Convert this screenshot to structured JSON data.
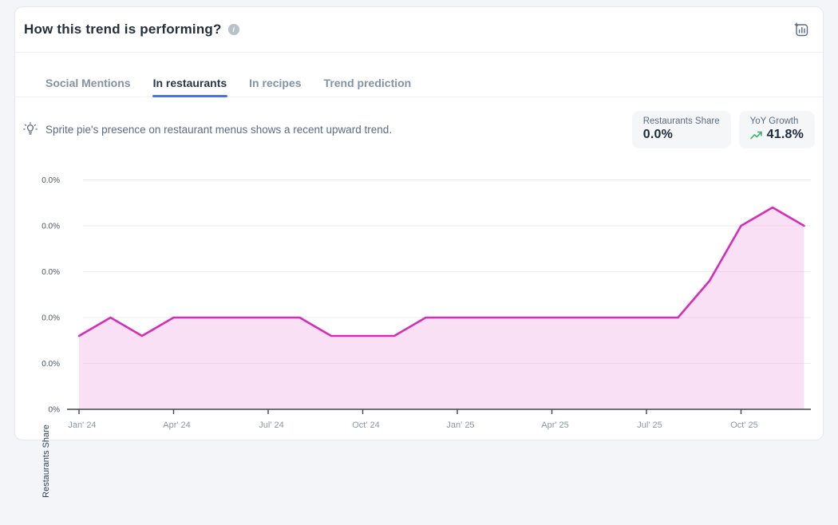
{
  "header": {
    "title": "How this trend is performing?",
    "info_icon": "info",
    "export_icon": "add-chart-to-board"
  },
  "tabs": {
    "items": [
      {
        "label": "Social Mentions",
        "active": false
      },
      {
        "label": "In restaurants",
        "active": true
      },
      {
        "label": "In recipes",
        "active": false
      },
      {
        "label": "Trend prediction",
        "active": false
      }
    ]
  },
  "insight": {
    "icon": "lightbulb",
    "text": "Sprite pie's presence on restaurant menus shows a recent upward trend."
  },
  "stats": [
    {
      "label": "Restaurants Share",
      "value": "0.0%"
    },
    {
      "label": "YoY Growth",
      "value": "41.8%",
      "trend": "up",
      "trend_color": "#3cb572"
    }
  ],
  "chart_data": {
    "type": "area",
    "title": "",
    "xlabel": "",
    "ylabel": "Restaurants Share",
    "legend": "none",
    "grid": "horizontal",
    "categories": [
      "Jan' 24",
      "Feb' 24",
      "Mar' 24",
      "Apr' 24",
      "May' 24",
      "Jun' 24",
      "Jul' 24",
      "Aug' 24",
      "Sep' 24",
      "Oct' 24",
      "Nov' 24",
      "Dec' 24",
      "Jan' 25",
      "Feb' 25",
      "Mar' 25",
      "Apr' 25",
      "May' 25",
      "Jun' 25",
      "Jul' 25",
      "Aug' 25",
      "Sep' 25",
      "Oct' 25",
      "Nov' 25",
      "Dec' 25"
    ],
    "values": [
      0.0016,
      0.002,
      0.0016,
      0.002,
      0.002,
      0.002,
      0.002,
      0.002,
      0.0016,
      0.0016,
      0.0016,
      0.002,
      0.002,
      0.002,
      0.002,
      0.002,
      0.002,
      0.002,
      0.002,
      0.002,
      0.0028,
      0.004,
      0.0044,
      0.004
    ],
    "value_unit": "percent (all gridline labels round to 0.0%)",
    "x_tick_every": 3,
    "x_tick_labels": [
      "Jan' 24",
      "Apr' 24",
      "Jul' 24",
      "Oct' 24",
      "Jan' 25",
      "Apr' 25",
      "Jul' 25",
      "Oct' 25"
    ],
    "y_ticks": [
      {
        "value": 0.0,
        "label": "0%"
      },
      {
        "value": 0.001,
        "label": "0.0%"
      },
      {
        "value": 0.002,
        "label": "0.0%"
      },
      {
        "value": 0.003,
        "label": "0.0%"
      },
      {
        "value": 0.004,
        "label": "0.0%"
      },
      {
        "value": 0.005,
        "label": "0.0%"
      }
    ],
    "ylim": [
      0,
      0.0053
    ],
    "line_color": "#d62db8",
    "fill_color": "#f3b4e6",
    "fill_opacity": 0.42,
    "grid_color": "#e8ebf0",
    "axis_color": "#3f454e",
    "x_tick_label_color": "#8b95a7",
    "y_tick_label_color": "#4c5565"
  }
}
